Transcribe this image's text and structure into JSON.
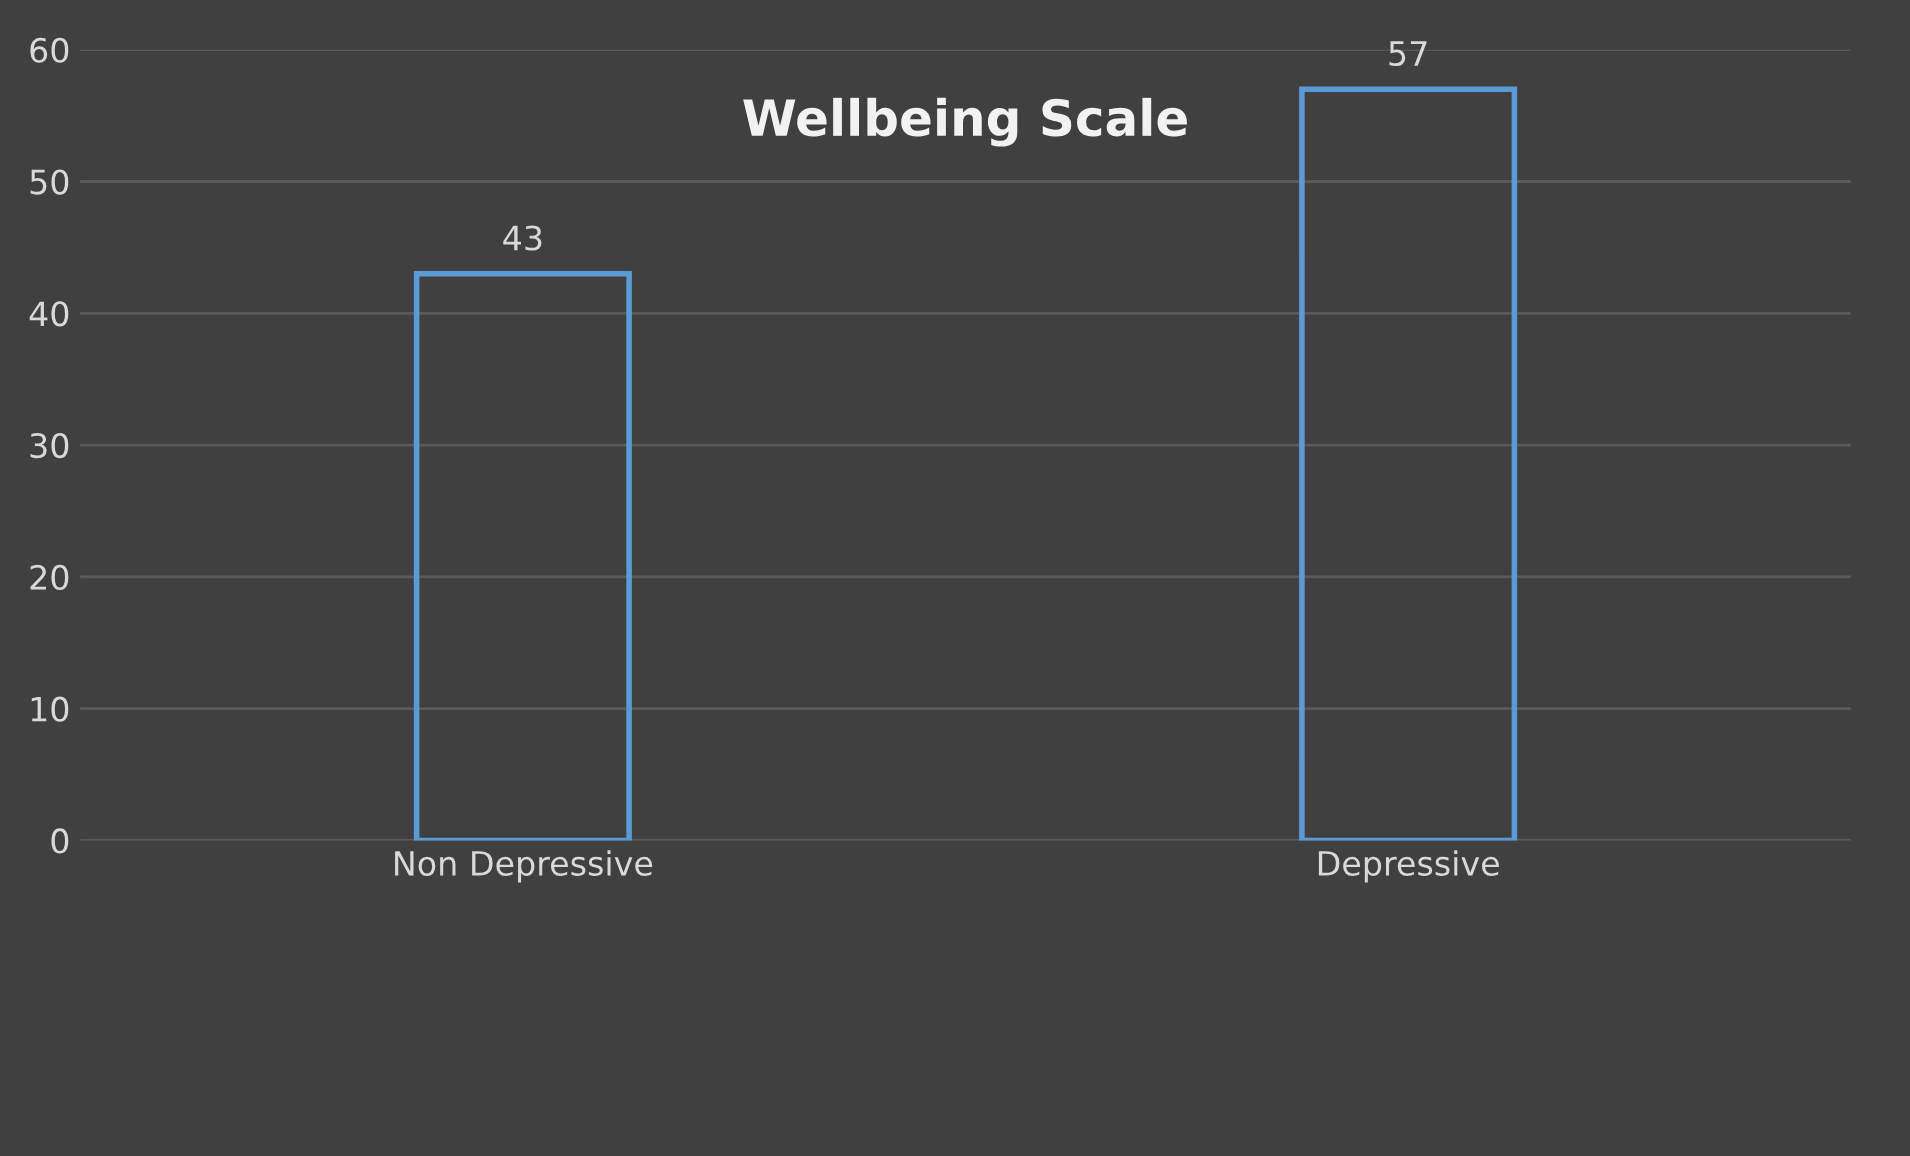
{
  "chart_data": {
    "type": "bar",
    "title": "Wellbeing Scale",
    "categories": [
      "Non Depressive",
      "Depressive"
    ],
    "values": [
      43,
      57
    ],
    "color": "#5b9bd5",
    "ylim": [
      0,
      60
    ],
    "yticks": [
      0,
      10,
      20,
      30,
      40,
      50,
      60
    ],
    "grid": "y",
    "data_labels": true
  }
}
